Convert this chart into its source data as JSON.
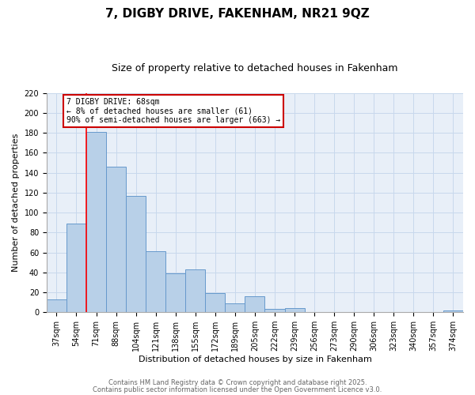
{
  "title": "7, DIGBY DRIVE, FAKENHAM, NR21 9QZ",
  "subtitle": "Size of property relative to detached houses in Fakenham",
  "xlabel": "Distribution of detached houses by size in Fakenham",
  "ylabel": "Number of detached properties",
  "bin_labels": [
    "37sqm",
    "54sqm",
    "71sqm",
    "88sqm",
    "104sqm",
    "121sqm",
    "138sqm",
    "155sqm",
    "172sqm",
    "189sqm",
    "205sqm",
    "222sqm",
    "239sqm",
    "256sqm",
    "273sqm",
    "290sqm",
    "306sqm",
    "323sqm",
    "340sqm",
    "357sqm",
    "374sqm"
  ],
  "bar_heights": [
    13,
    89,
    181,
    146,
    117,
    61,
    39,
    43,
    19,
    9,
    16,
    3,
    4,
    0,
    0,
    0,
    0,
    0,
    0,
    0,
    2
  ],
  "bar_color": "#b8d0e8",
  "bar_edge_color": "#6699cc",
  "red_line_bin": 2,
  "annotation_title": "7 DIGBY DRIVE: 68sqm",
  "annotation_line1": "← 8% of detached houses are smaller (61)",
  "annotation_line2": "90% of semi-detached houses are larger (663) →",
  "annotation_box_color": "#ffffff",
  "annotation_box_edge": "#cc0000",
  "ylim": [
    0,
    220
  ],
  "yticks": [
    0,
    20,
    40,
    60,
    80,
    100,
    120,
    140,
    160,
    180,
    200,
    220
  ],
  "footer1": "Contains HM Land Registry data © Crown copyright and database right 2025.",
  "footer2": "Contains public sector information licensed under the Open Government Licence v3.0.",
  "background_color": "#ffffff",
  "plot_bg_color": "#e8eff8",
  "grid_color": "#c8d8ec",
  "title_fontsize": 11,
  "subtitle_fontsize": 9,
  "axis_label_fontsize": 8,
  "tick_fontsize": 7,
  "annotation_fontsize": 7,
  "footer_fontsize": 6
}
